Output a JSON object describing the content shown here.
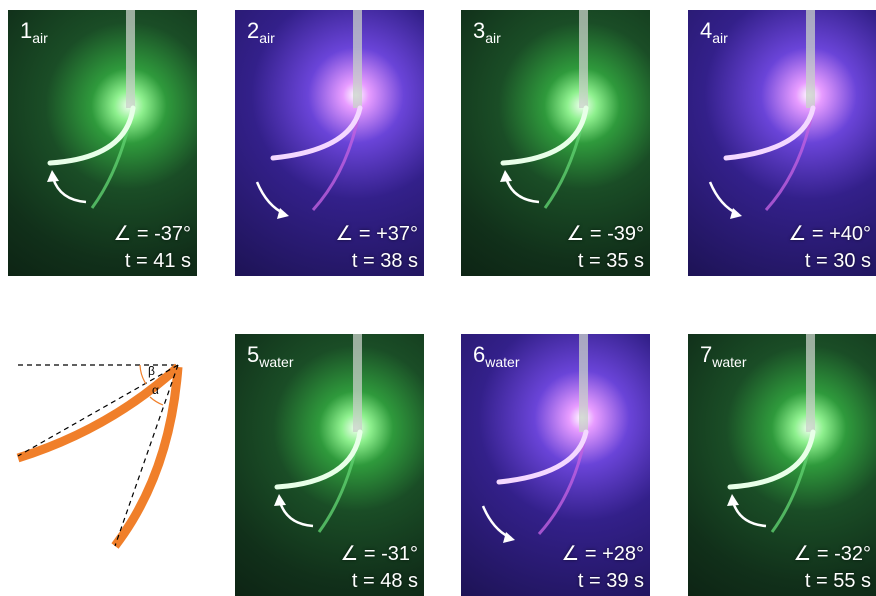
{
  "panels": [
    {
      "number": "1",
      "medium": "air",
      "angle": "∠ = -37°",
      "time": "t = 41 s"
    },
    {
      "number": "2",
      "medium": "air",
      "angle": "∠ = +37°",
      "time": "t = 38 s"
    },
    {
      "number": "3",
      "medium": "air",
      "angle": "∠ = -39°",
      "time": "t = 35 s"
    },
    {
      "number": "4",
      "medium": "air",
      "angle": "∠ = +40°",
      "time": "t = 30 s"
    },
    {
      "number": "5",
      "medium": "water",
      "angle": "∠ = -31°",
      "time": "t = 48 s"
    },
    {
      "number": "6",
      "medium": "water",
      "angle": "∠ = +28°",
      "time": "t = 39 s"
    },
    {
      "number": "7",
      "medium": "water",
      "angle": "∠ = -32°",
      "time": "t = 55 s"
    }
  ],
  "diagram": {
    "beta": "β",
    "alpha": "α"
  }
}
